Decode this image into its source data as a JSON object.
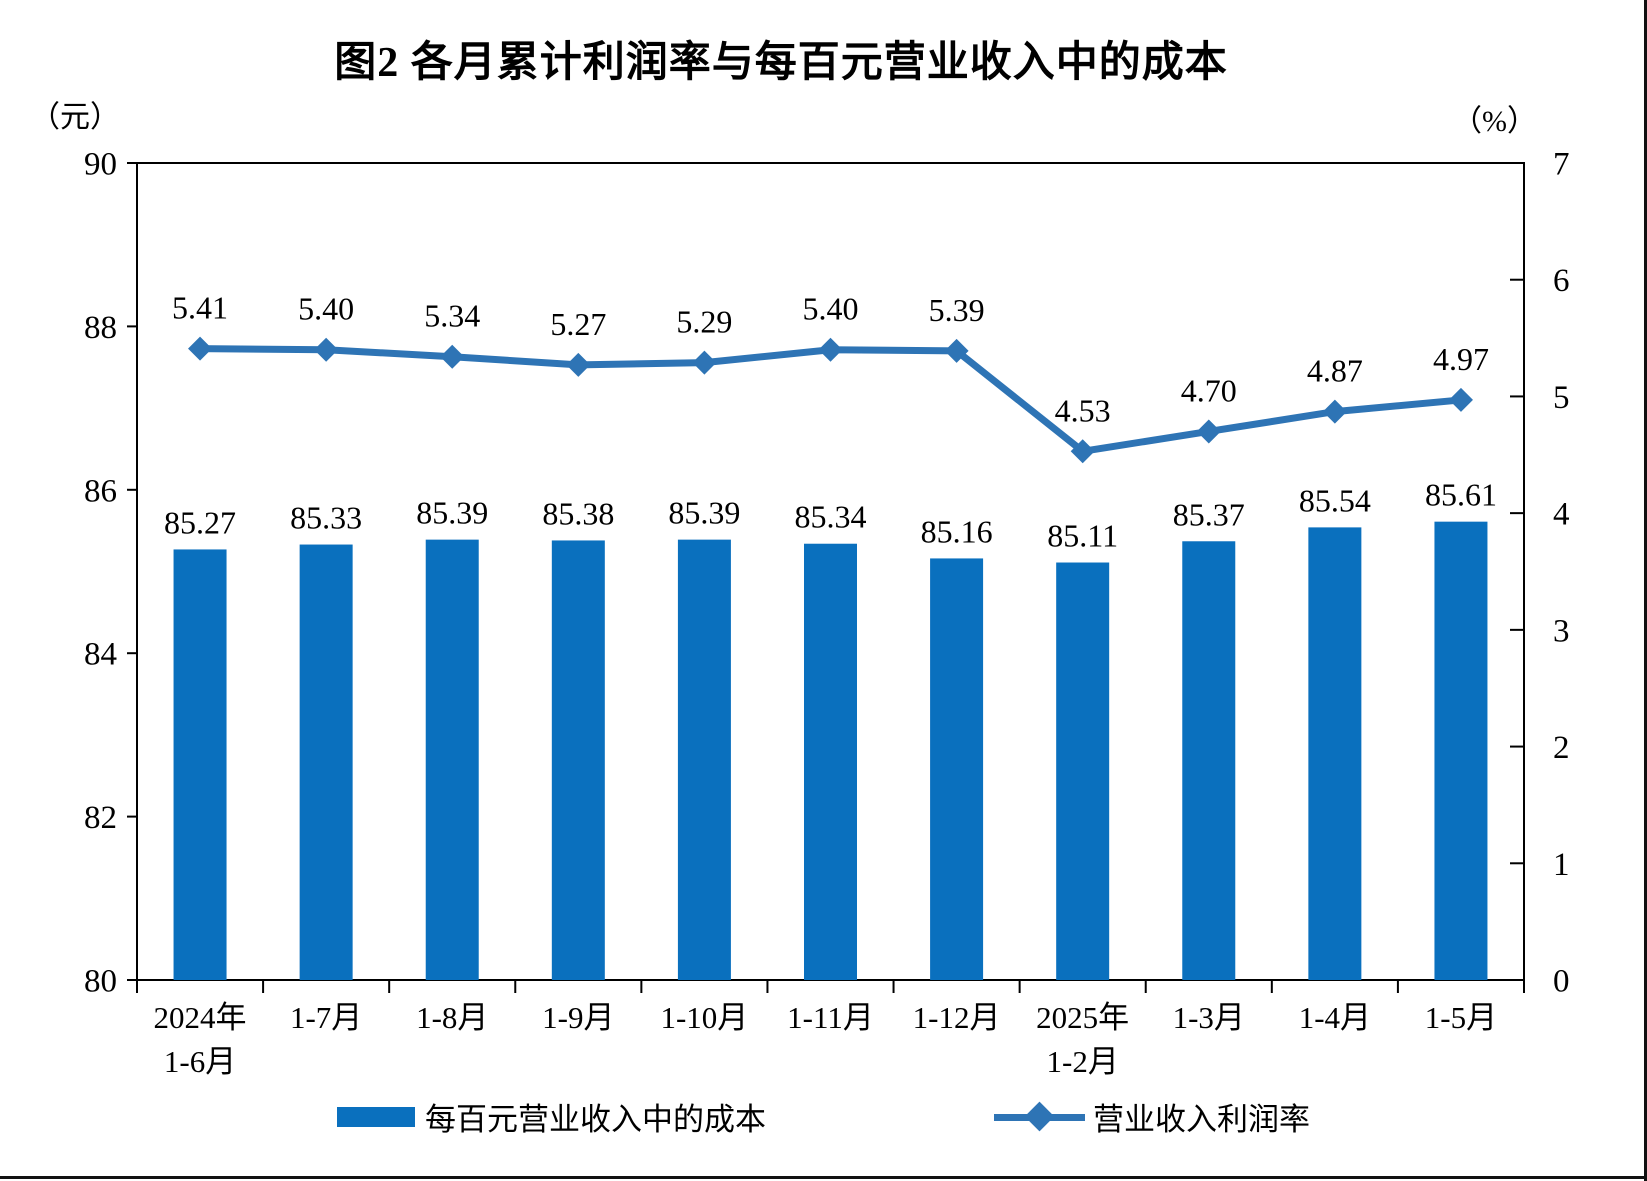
{
  "title": "图2 各月累计利润率与每百元营业收入中的成本",
  "chart_data": {
    "type": "combo",
    "title": "图2 各月累计利润率与每百元营业收入中的成本",
    "categories": [
      "2024年\n1-6月",
      "1-7月",
      "1-8月",
      "1-9月",
      "1-10月",
      "1-11月",
      "1-12月",
      "2025年\n1-2月",
      "1-3月",
      "1-4月",
      "1-5月"
    ],
    "series": [
      {
        "name": "每百元营业收入中的成本",
        "type": "bar",
        "axis": "left",
        "unit": "元",
        "color": "#0A70BE",
        "values": [
          85.27,
          85.33,
          85.39,
          85.38,
          85.39,
          85.34,
          85.16,
          85.11,
          85.37,
          85.54,
          85.61
        ]
      },
      {
        "name": "营业收入利润率",
        "type": "line",
        "axis": "right",
        "unit": "%",
        "color": "#2E74B5",
        "marker": "diamond",
        "values": [
          5.41,
          5.4,
          5.34,
          5.27,
          5.29,
          5.4,
          5.39,
          4.53,
          4.7,
          4.87,
          4.97
        ]
      }
    ],
    "axes": {
      "left": {
        "unit_label": "（元）",
        "min": 80,
        "max": 90,
        "tick_step": 2,
        "ticks": [
          90,
          88,
          86,
          84,
          82,
          80
        ]
      },
      "right": {
        "unit_label": "（%）",
        "min": 0,
        "max": 7,
        "tick_step": 1,
        "ticks": [
          7,
          6,
          5,
          4,
          3,
          2,
          1,
          0
        ]
      }
    },
    "grid": false,
    "data_labels": true,
    "label_decimals": 2,
    "legend_position": "bottom"
  },
  "legend": [
    {
      "label": "每百元营业收入中的成本",
      "swatch": "bar"
    },
    {
      "label": "营业收入利润率",
      "swatch": "line-diamond"
    }
  ],
  "colors": {
    "bar": "#0A70BE",
    "line": "#2E74B5",
    "axis": "#000000",
    "text": "#000000"
  }
}
